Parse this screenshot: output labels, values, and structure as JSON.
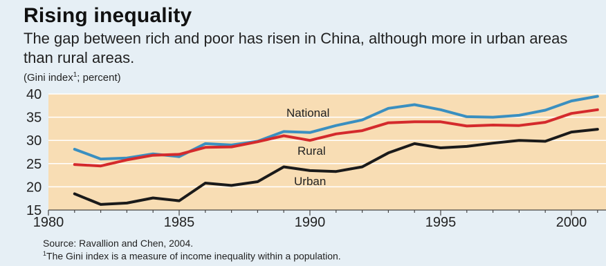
{
  "header": {
    "title": "Rising inequality",
    "subtitle": "The gap between rich and poor has risen in China, although more in urban areas than rural areas.",
    "unit_label": "(Gini index",
    "unit_sup": "1",
    "unit_suffix": "; percent)"
  },
  "footer": {
    "source": "Source: Ravallion and Chen, 2004.",
    "footnote_mark": "1",
    "footnote": "The Gini index is a measure of income inequality within a population."
  },
  "colors": {
    "plot_bg": "#f8ddb4",
    "national": "#3a8fc0",
    "rural": "#d42a2c",
    "urban": "#1a1a1a",
    "grid": "#ffffff"
  },
  "chart_data": {
    "type": "line",
    "title": "Rising inequality",
    "xlabel": "",
    "ylabel": "(Gini index; percent)",
    "xlim": [
      1980,
      2001.5
    ],
    "ylim": [
      15,
      40
    ],
    "yticks": [
      15,
      20,
      25,
      30,
      35,
      40
    ],
    "xticks": [
      1980,
      1985,
      1990,
      1995,
      2000
    ],
    "grid": true,
    "x": [
      1981,
      1982,
      1983,
      1984,
      1985,
      1986,
      1987,
      1988,
      1989,
      1990,
      1991,
      1992,
      1993,
      1994,
      1995,
      1996,
      1997,
      1998,
      1999,
      2000,
      2001
    ],
    "series": [
      {
        "name": "National",
        "color_key": "national",
        "values": [
          28.1,
          26.0,
          26.2,
          27.1,
          26.5,
          29.3,
          29.0,
          29.8,
          31.9,
          31.7,
          33.2,
          34.4,
          36.9,
          37.7,
          36.6,
          35.1,
          35.0,
          35.4,
          36.5,
          38.5,
          39.5
        ]
      },
      {
        "name": "Rural",
        "color_key": "rural",
        "values": [
          24.8,
          24.5,
          25.8,
          26.8,
          27.0,
          28.5,
          28.6,
          29.7,
          31.0,
          30.0,
          31.4,
          32.1,
          33.8,
          34.0,
          34.0,
          33.1,
          33.3,
          33.2,
          33.9,
          35.8,
          36.6
        ]
      },
      {
        "name": "Urban",
        "color_key": "urban",
        "values": [
          18.5,
          16.2,
          16.5,
          17.6,
          17.0,
          20.8,
          20.3,
          21.1,
          24.3,
          23.5,
          23.3,
          24.3,
          27.3,
          29.3,
          28.4,
          28.7,
          29.4,
          30.0,
          29.8,
          31.8,
          32.4
        ]
      }
    ],
    "series_labels": {
      "national": "National",
      "rural": "Rural",
      "urban": "Urban"
    }
  }
}
